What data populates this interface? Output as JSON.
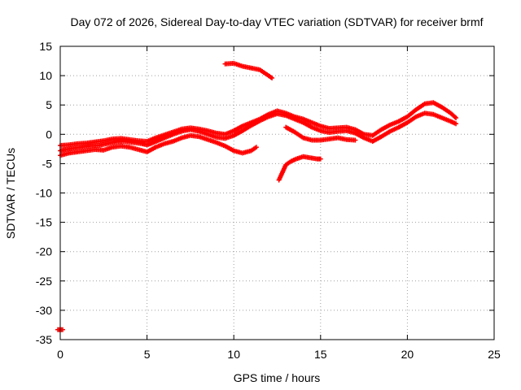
{
  "chart_data": {
    "type": "scatter",
    "title": "Day 072 of 2026, Sidereal Day-to-day VTEC variation (SDTVAR) for receiver brmf",
    "xlabel": "GPS time / hours",
    "ylabel": "SDTVAR / TECUs",
    "xlim": [
      0,
      25
    ],
    "ylim": [
      -35,
      15
    ],
    "xticks": [
      0,
      5,
      10,
      15,
      20,
      25
    ],
    "yticks": [
      15,
      10,
      5,
      0,
      -5,
      -10,
      -15,
      -20,
      -25,
      -30,
      -35
    ],
    "grid": true,
    "marker_color": "#ff0000",
    "series": [
      {
        "name": "main-band",
        "values": [
          [
            0.0,
            -2.8
          ],
          [
            0.3,
            -2.6
          ],
          [
            0.7,
            -2.4
          ],
          [
            1.2,
            -2.2
          ],
          [
            1.7,
            -2.0
          ],
          [
            2.2,
            -1.9
          ],
          [
            2.7,
            -1.6
          ],
          [
            3.2,
            -1.3
          ],
          [
            3.7,
            -1.2
          ],
          [
            4.2,
            -1.4
          ],
          [
            4.7,
            -1.6
          ],
          [
            5.0,
            -1.8
          ],
          [
            5.3,
            -1.5
          ],
          [
            5.7,
            -1.0
          ],
          [
            6.1,
            -0.5
          ],
          [
            6.6,
            0.1
          ],
          [
            7.1,
            0.6
          ],
          [
            7.5,
            0.8
          ],
          [
            8.0,
            0.5
          ],
          [
            8.5,
            0.0
          ],
          [
            9.0,
            -0.5
          ],
          [
            9.5,
            -0.7
          ],
          [
            10.0,
            -0.2
          ],
          [
            10.5,
            0.6
          ],
          [
            11.0,
            1.5
          ],
          [
            11.5,
            2.3
          ],
          [
            12.0,
            3.0
          ],
          [
            12.5,
            3.5
          ],
          [
            13.0,
            3.2
          ],
          [
            13.5,
            2.6
          ],
          [
            14.0,
            2.0
          ],
          [
            14.5,
            1.2
          ],
          [
            15.0,
            0.6
          ],
          [
            15.5,
            0.3
          ],
          [
            16.0,
            0.5
          ],
          [
            16.5,
            0.6
          ],
          [
            17.0,
            0.2
          ],
          [
            17.5,
            -0.6
          ],
          [
            18.0,
            -1.2
          ],
          [
            18.5,
            -0.4
          ],
          [
            19.0,
            0.5
          ],
          [
            19.5,
            1.2
          ],
          [
            20.0,
            2.0
          ],
          [
            20.5,
            3.0
          ],
          [
            21.0,
            3.6
          ],
          [
            21.5,
            3.4
          ],
          [
            22.0,
            2.8
          ],
          [
            22.5,
            2.2
          ],
          [
            22.8,
            1.8
          ]
        ]
      },
      {
        "name": "lower-band",
        "values": [
          [
            0.0,
            -3.6
          ],
          [
            0.5,
            -3.2
          ],
          [
            1.0,
            -3.0
          ],
          [
            1.5,
            -2.8
          ],
          [
            2.0,
            -2.6
          ],
          [
            2.5,
            -2.7
          ],
          [
            3.0,
            -2.2
          ],
          [
            3.5,
            -2.0
          ],
          [
            4.0,
            -2.2
          ],
          [
            4.5,
            -2.6
          ],
          [
            5.0,
            -3.0
          ],
          [
            5.5,
            -2.2
          ],
          [
            6.0,
            -1.6
          ],
          [
            6.5,
            -1.2
          ],
          [
            7.0,
            -0.6
          ],
          [
            7.5,
            -0.2
          ],
          [
            8.0,
            -0.4
          ],
          [
            8.5,
            -0.9
          ],
          [
            9.0,
            -1.4
          ],
          [
            9.5,
            -2.0
          ],
          [
            10.0,
            -2.8
          ],
          [
            10.5,
            -3.2
          ],
          [
            11.0,
            -2.8
          ],
          [
            11.3,
            -2.2
          ]
        ]
      },
      {
        "name": "upper-band",
        "values": [
          [
            0.0,
            -1.9
          ],
          [
            0.5,
            -1.8
          ],
          [
            1.0,
            -1.6
          ],
          [
            1.5,
            -1.5
          ],
          [
            2.0,
            -1.3
          ],
          [
            2.5,
            -1.1
          ],
          [
            3.0,
            -0.8
          ],
          [
            3.5,
            -0.7
          ],
          [
            4.0,
            -0.9
          ],
          [
            4.5,
            -1.1
          ],
          [
            5.0,
            -1.2
          ],
          [
            5.5,
            -0.6
          ],
          [
            6.0,
            -0.1
          ],
          [
            6.5,
            0.4
          ],
          [
            7.0,
            0.9
          ],
          [
            7.5,
            1.1
          ],
          [
            8.0,
            0.9
          ],
          [
            8.5,
            0.6
          ],
          [
            9.0,
            0.2
          ],
          [
            9.5,
            0.0
          ],
          [
            10.0,
            0.6
          ],
          [
            10.5,
            1.4
          ],
          [
            11.0,
            2.0
          ],
          [
            11.5,
            2.6
          ],
          [
            12.0,
            3.4
          ],
          [
            12.5,
            4.0
          ],
          [
            13.0,
            3.6
          ],
          [
            13.5,
            3.0
          ],
          [
            14.0,
            2.6
          ],
          [
            14.5,
            2.0
          ],
          [
            15.0,
            1.4
          ],
          [
            15.5,
            1.0
          ],
          [
            16.0,
            1.1
          ],
          [
            16.5,
            1.2
          ],
          [
            17.0,
            0.8
          ],
          [
            17.5,
            0.0
          ],
          [
            18.0,
            -0.2
          ],
          [
            18.5,
            0.8
          ],
          [
            19.0,
            1.6
          ],
          [
            19.5,
            2.2
          ],
          [
            20.0,
            3.0
          ],
          [
            20.5,
            4.2
          ],
          [
            21.0,
            5.2
          ],
          [
            21.5,
            5.4
          ],
          [
            22.0,
            4.6
          ],
          [
            22.5,
            3.6
          ],
          [
            22.8,
            2.8
          ]
        ]
      },
      {
        "name": "high-arc",
        "values": [
          [
            9.5,
            12.0
          ],
          [
            10.0,
            12.1
          ],
          [
            10.5,
            11.6
          ],
          [
            11.0,
            11.3
          ],
          [
            11.5,
            11.0
          ],
          [
            12.0,
            10.0
          ],
          [
            12.2,
            9.6
          ]
        ]
      },
      {
        "name": "drop-segment",
        "values": [
          [
            12.6,
            -7.8
          ],
          [
            12.8,
            -6.5
          ],
          [
            13.0,
            -5.2
          ],
          [
            13.3,
            -4.6
          ],
          [
            13.6,
            -4.2
          ],
          [
            14.0,
            -3.8
          ],
          [
            14.4,
            -4.0
          ],
          [
            14.8,
            -4.2
          ],
          [
            15.0,
            -4.2
          ]
        ]
      },
      {
        "name": "afternoon-dip",
        "values": [
          [
            13.0,
            1.2
          ],
          [
            13.5,
            0.4
          ],
          [
            14.0,
            -0.6
          ],
          [
            14.5,
            -1.0
          ],
          [
            15.0,
            -1.0
          ],
          [
            15.5,
            -0.8
          ],
          [
            16.0,
            -0.6
          ],
          [
            16.5,
            -0.9
          ],
          [
            17.0,
            -1.0
          ]
        ]
      },
      {
        "name": "outlier",
        "values": [
          [
            0.0,
            -33.3
          ]
        ]
      }
    ]
  }
}
